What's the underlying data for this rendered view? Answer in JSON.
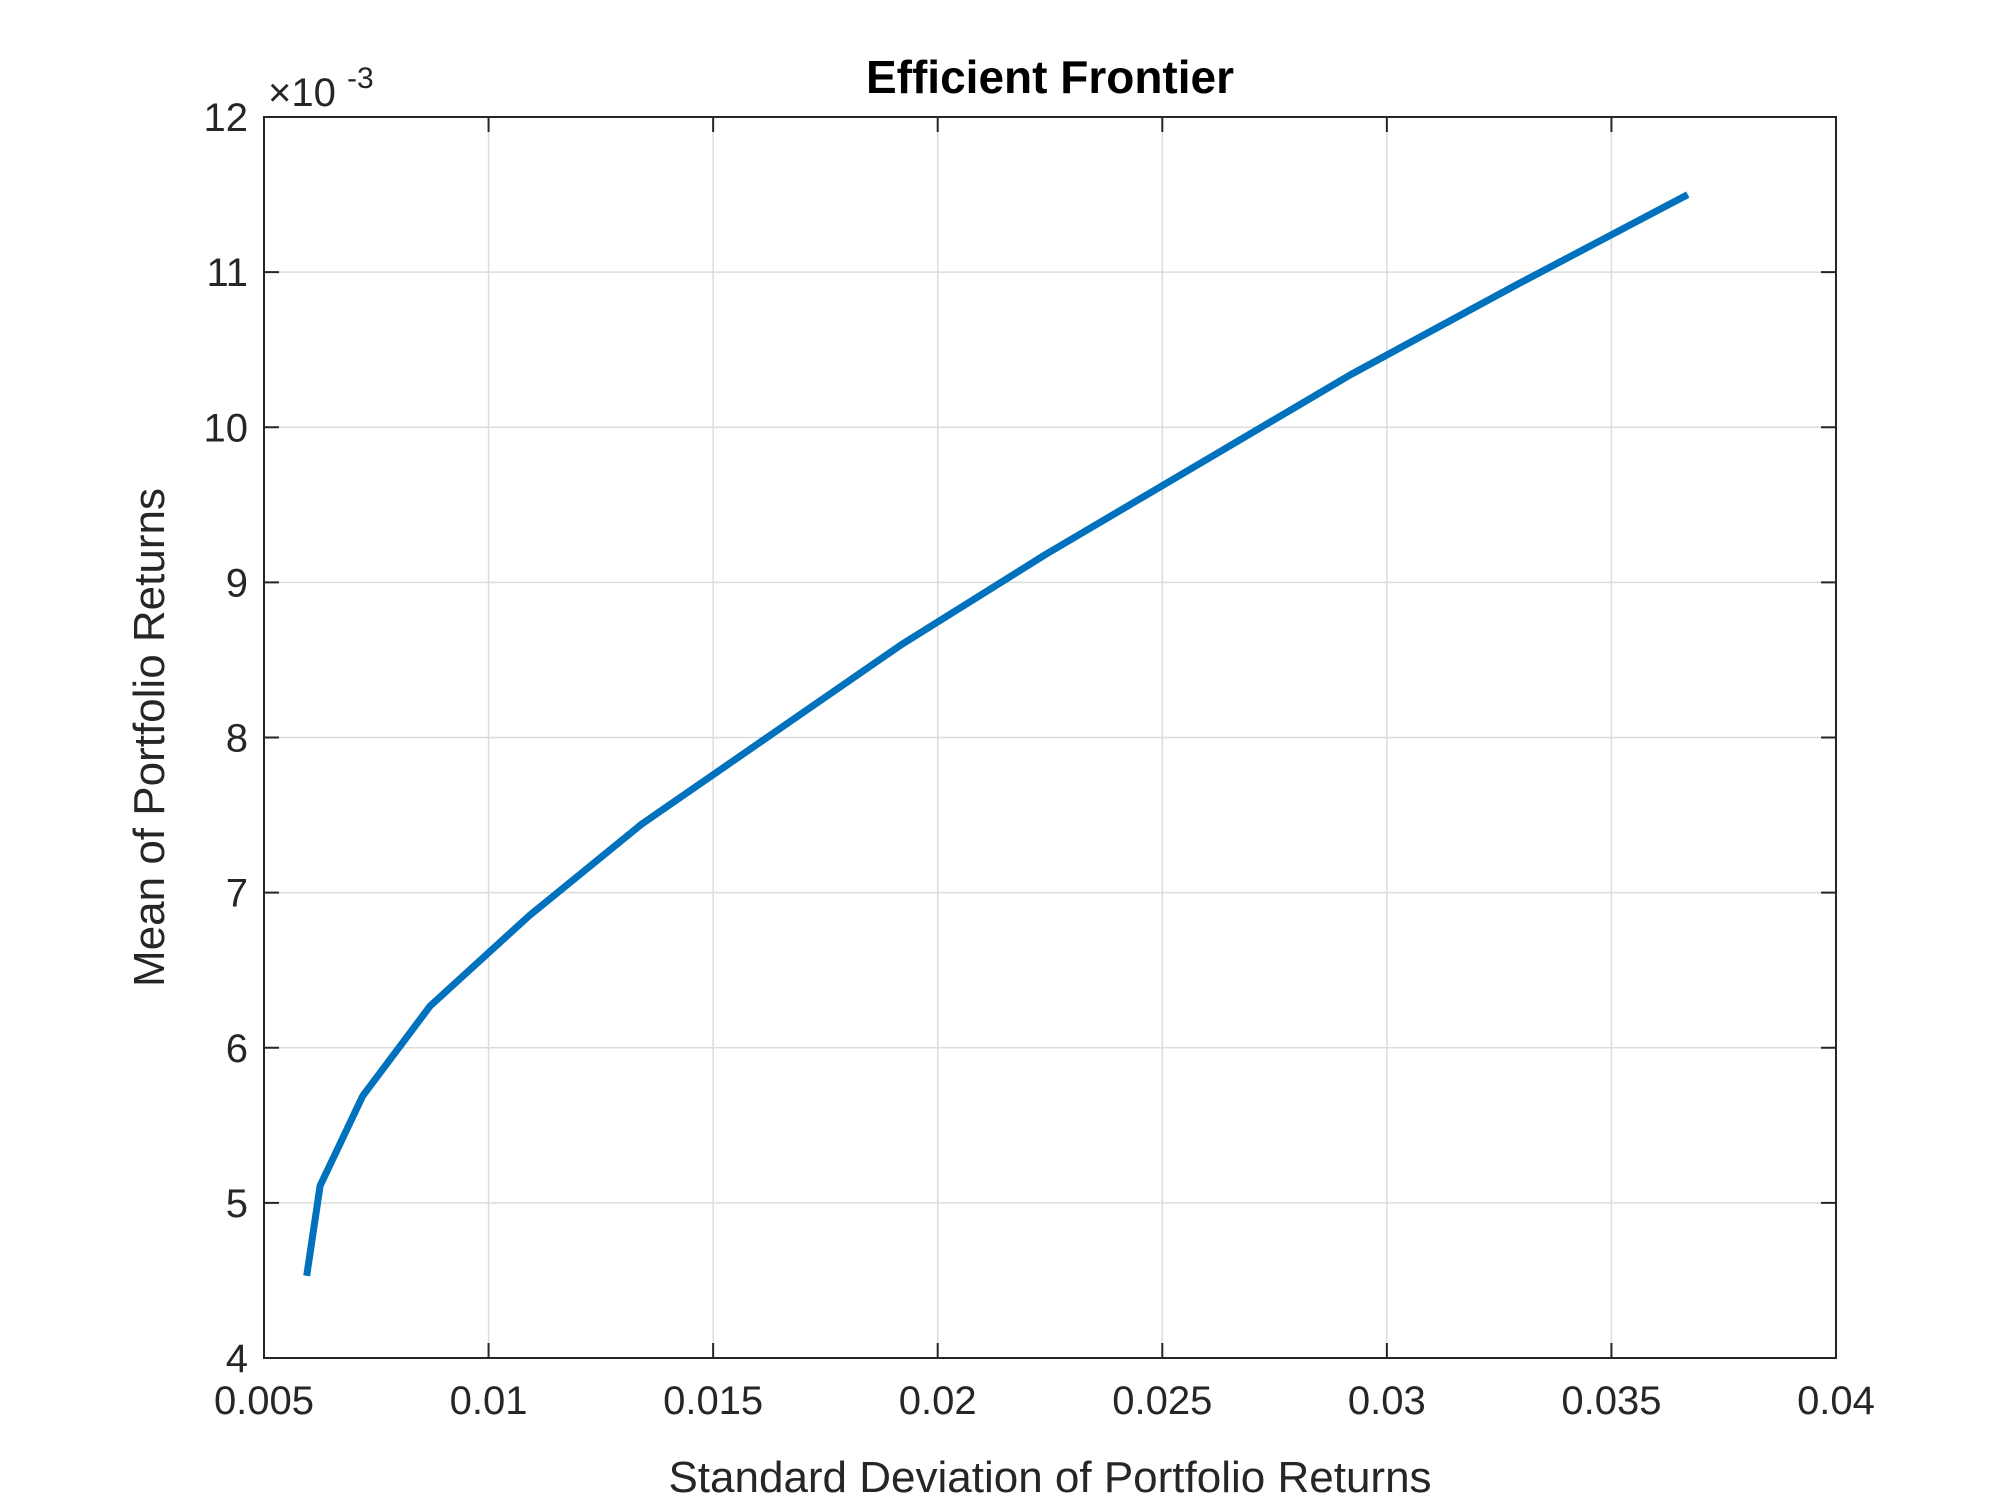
{
  "chart_data": {
    "type": "line",
    "title": "Efficient Frontier",
    "xlabel": "Standard Deviation of Portfolio Returns",
    "ylabel": "Mean of Portfolio Returns",
    "y_exponent_base": "×10",
    "y_exponent": "-3",
    "xlim": [
      0.005,
      0.04
    ],
    "ylim": [
      4,
      12
    ],
    "grid": true,
    "x_ticks": [
      0.005,
      0.01,
      0.015,
      0.02,
      0.025,
      0.03,
      0.035,
      0.04
    ],
    "x_tick_labels": [
      "0.005",
      "0.01",
      "0.015",
      "0.02",
      "0.025",
      "0.03",
      "0.035",
      "0.04"
    ],
    "y_ticks": [
      4,
      5,
      6,
      7,
      8,
      9,
      10,
      11,
      12
    ],
    "y_tick_labels": [
      "4",
      "5",
      "6",
      "7",
      "8",
      "9",
      "10",
      "11",
      "12"
    ],
    "line_color": "#0072BD",
    "series": [
      {
        "x": [
          0.00595,
          0.00625,
          0.0072,
          0.0087,
          0.0109,
          0.0134,
          0.0163,
          0.0192,
          0.0224,
          0.0258,
          0.0292,
          0.0329,
          0.0367
        ],
        "y": [
          4.53,
          5.11,
          5.69,
          6.27,
          6.85,
          7.44,
          8.02,
          8.6,
          9.18,
          9.76,
          10.34,
          10.92,
          11.5
        ]
      }
    ]
  }
}
